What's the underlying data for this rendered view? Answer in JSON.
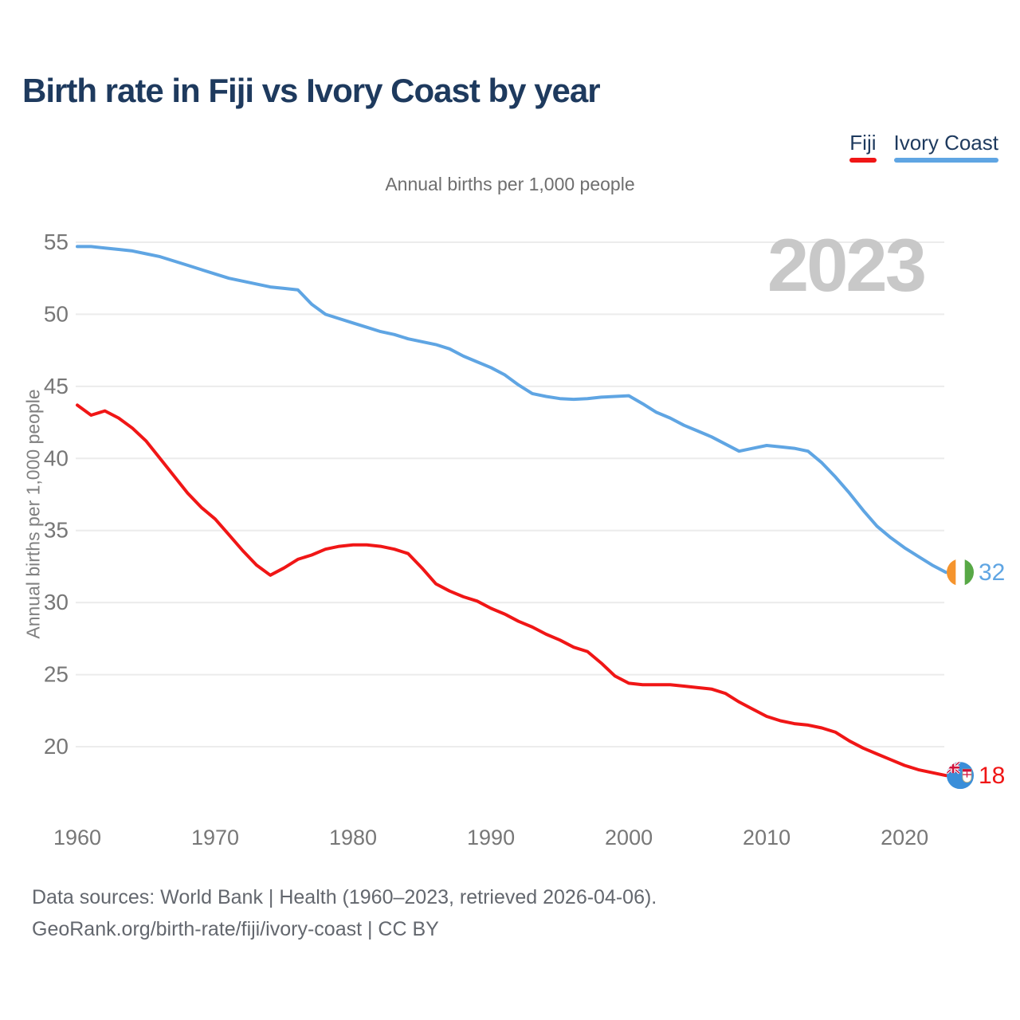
{
  "title": "Birth rate in Fiji vs Ivory Coast by year",
  "subtitle": "Annual births per 1,000 people",
  "y_axis_label": "Annual births per 1,000 people",
  "watermark": "2023",
  "legend": [
    {
      "label": "Fiji",
      "color": "#f01616"
    },
    {
      "label": "Ivory Coast",
      "color": "#5fa5e3"
    }
  ],
  "footer": {
    "line1": "Data sources: World Bank | Health (1960–2023, retrieved 2026-04-06).",
    "line2": "GeoRank.org/birth-rate/fiji/ivory-coast | CC BY"
  },
  "colors": {
    "title_navy": "#1e3a5e",
    "subtitle_gray": "#6e6e6e",
    "tick_gray": "#777777",
    "gridline": "#ececec",
    "watermark_gray": "#c8c8c8",
    "footer_gray": "#63676e"
  },
  "chart_data": {
    "type": "line",
    "title": "Birth rate in Fiji vs Ivory Coast by year",
    "ylabel": "Annual births per 1,000 people",
    "grid": "horizontal",
    "legend_position": "top-right",
    "ylim": [
      17,
      56
    ],
    "y_ticks": [
      55,
      50,
      45,
      40,
      35,
      30,
      25,
      20
    ],
    "x_ticks": [
      1960,
      1970,
      1980,
      1990,
      2000,
      2010,
      2020
    ],
    "x": [
      1960,
      1961,
      1962,
      1963,
      1964,
      1965,
      1966,
      1967,
      1968,
      1969,
      1970,
      1971,
      1972,
      1973,
      1974,
      1975,
      1976,
      1977,
      1978,
      1979,
      1980,
      1981,
      1982,
      1983,
      1984,
      1985,
      1986,
      1987,
      1988,
      1989,
      1990,
      1991,
      1992,
      1993,
      1994,
      1995,
      1996,
      1997,
      1998,
      1999,
      2000,
      2001,
      2002,
      2003,
      2004,
      2005,
      2006,
      2007,
      2008,
      2009,
      2010,
      2011,
      2012,
      2013,
      2014,
      2015,
      2016,
      2017,
      2018,
      2019,
      2020,
      2021,
      2022,
      2023
    ],
    "series": [
      {
        "name": "Fiji",
        "color": "#f01616",
        "end_label": "18",
        "values": [
          43.7,
          43.0,
          43.3,
          42.8,
          42.1,
          41.2,
          40.0,
          38.8,
          37.6,
          36.6,
          35.8,
          34.7,
          33.6,
          32.6,
          31.9,
          32.4,
          33.0,
          33.3,
          33.7,
          33.9,
          34.0,
          34.0,
          33.9,
          33.7,
          33.4,
          32.4,
          31.3,
          30.8,
          30.4,
          30.1,
          29.6,
          29.2,
          28.7,
          28.3,
          27.8,
          27.4,
          26.9,
          26.6,
          25.8,
          24.9,
          24.4,
          24.3,
          24.3,
          24.3,
          24.2,
          24.1,
          24.0,
          23.7,
          23.1,
          22.6,
          22.1,
          21.8,
          21.6,
          21.5,
          21.3,
          21.0,
          20.4,
          19.9,
          19.5,
          19.1,
          18.7,
          18.4,
          18.2,
          18.0
        ]
      },
      {
        "name": "Ivory Coast",
        "color": "#5fa5e3",
        "end_label": "32",
        "values": [
          54.7,
          54.7,
          54.6,
          54.5,
          54.4,
          54.2,
          54.0,
          53.7,
          53.4,
          53.1,
          52.8,
          52.5,
          52.3,
          52.1,
          51.9,
          51.8,
          51.7,
          50.7,
          50.0,
          49.7,
          49.4,
          49.1,
          48.8,
          48.6,
          48.3,
          48.1,
          47.9,
          47.6,
          47.1,
          46.7,
          46.3,
          45.8,
          45.1,
          44.5,
          44.3,
          44.15,
          44.1,
          44.15,
          44.25,
          44.3,
          44.35,
          43.8,
          43.2,
          42.8,
          42.3,
          41.9,
          41.5,
          41.0,
          40.5,
          40.7,
          40.9,
          40.8,
          40.7,
          40.5,
          39.7,
          38.7,
          37.6,
          36.4,
          35.3,
          34.5,
          33.8,
          33.2,
          32.6,
          32.1
        ]
      }
    ]
  }
}
